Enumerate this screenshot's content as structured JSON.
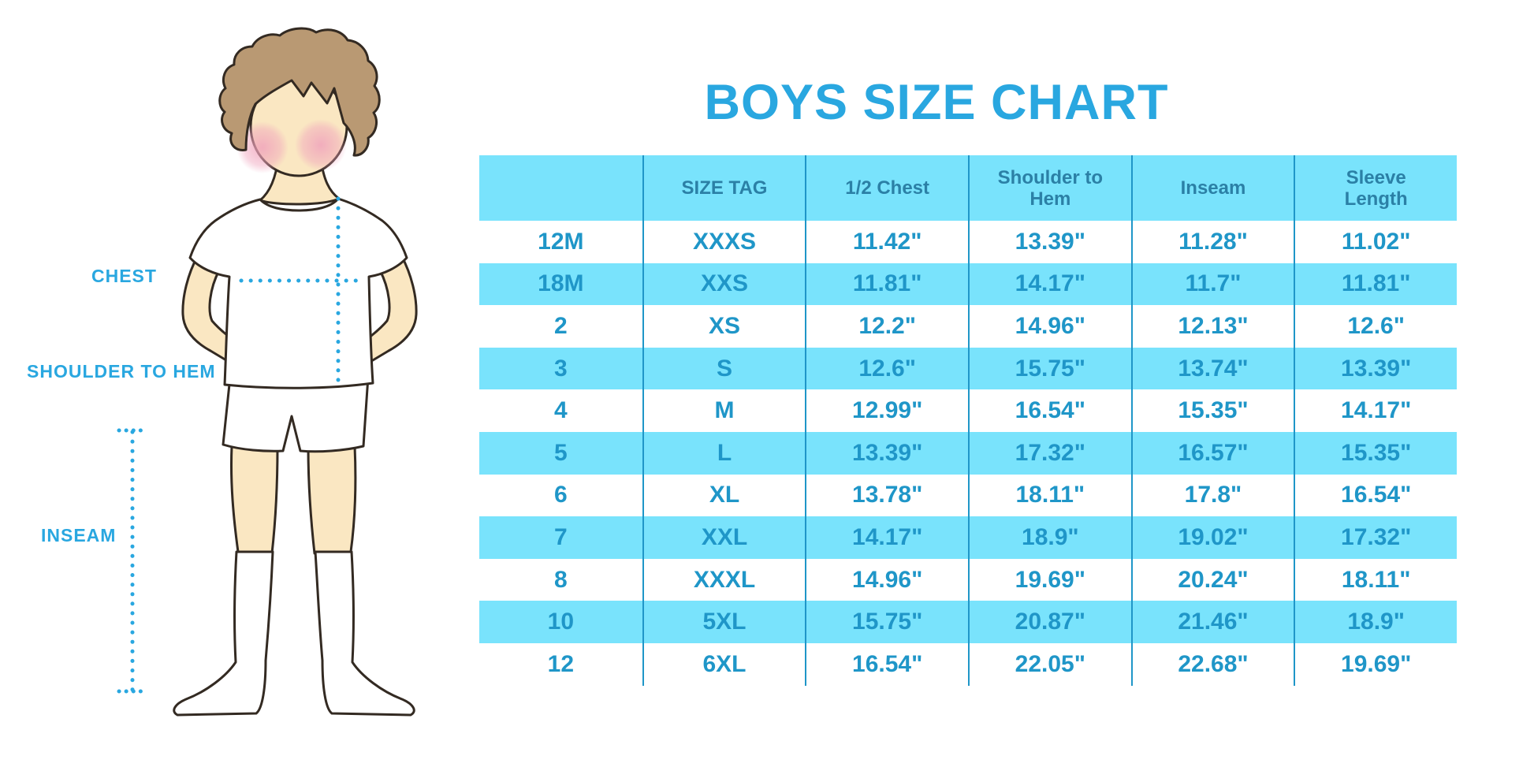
{
  "title": {
    "text": "BOYS SIZE CHART"
  },
  "figure": {
    "labels": {
      "chest": "CHEST",
      "shoulder_to_hem": "SHOULDER TO HEM",
      "inseam": "INSEAM"
    }
  },
  "chart_data": {
    "type": "table",
    "title": "BOYS SIZE CHART",
    "columns": [
      "",
      "SIZE TAG",
      "1/2 Chest",
      "Shoulder to Hem",
      "Inseam",
      "Sleeve Length"
    ],
    "rows": [
      [
        "12M",
        "XXXS",
        "11.42\"",
        "13.39\"",
        "11.28\"",
        "11.02\""
      ],
      [
        "18M",
        "XXS",
        "11.81\"",
        "14.17\"",
        "11.7\"",
        "11.81\""
      ],
      [
        "2",
        "XS",
        "12.2\"",
        "14.96\"",
        "12.13\"",
        "12.6\""
      ],
      [
        "3",
        "S",
        "12.6\"",
        "15.75\"",
        "13.74\"",
        "13.39\""
      ],
      [
        "4",
        "M",
        "12.99\"",
        "16.54\"",
        "15.35\"",
        "14.17\""
      ],
      [
        "5",
        "L",
        "13.39\"",
        "17.32\"",
        "16.57\"",
        "15.35\""
      ],
      [
        "6",
        "XL",
        "13.78\"",
        "18.11\"",
        "17.8\"",
        "16.54\""
      ],
      [
        "7",
        "XXL",
        "14.17\"",
        "18.9\"",
        "19.02\"",
        "17.32\""
      ],
      [
        "8",
        "XXXL",
        "14.96\"",
        "19.69\"",
        "20.24\"",
        "18.11\""
      ],
      [
        "10",
        "5XL",
        "15.75\"",
        "20.87\"",
        "21.46\"",
        "18.9\""
      ],
      [
        "12",
        "6XL",
        "16.54\"",
        "22.05\"",
        "22.68\"",
        "19.69\""
      ]
    ],
    "layout": {
      "zebra_striping": true,
      "first_data_row_background": "white",
      "grid": "vertical-dividers-only"
    }
  },
  "colors": {
    "accent-blue": "#29A7E0",
    "table-cyan": "#79E3FC",
    "divider-blue": "#1F96C8",
    "cell-text": "#1F96C8",
    "header-text": "#2B80A6",
    "skin": "#FAE7C2",
    "hair": "#B99973",
    "blush": "#F0A3BC",
    "outline": "#332A22"
  }
}
